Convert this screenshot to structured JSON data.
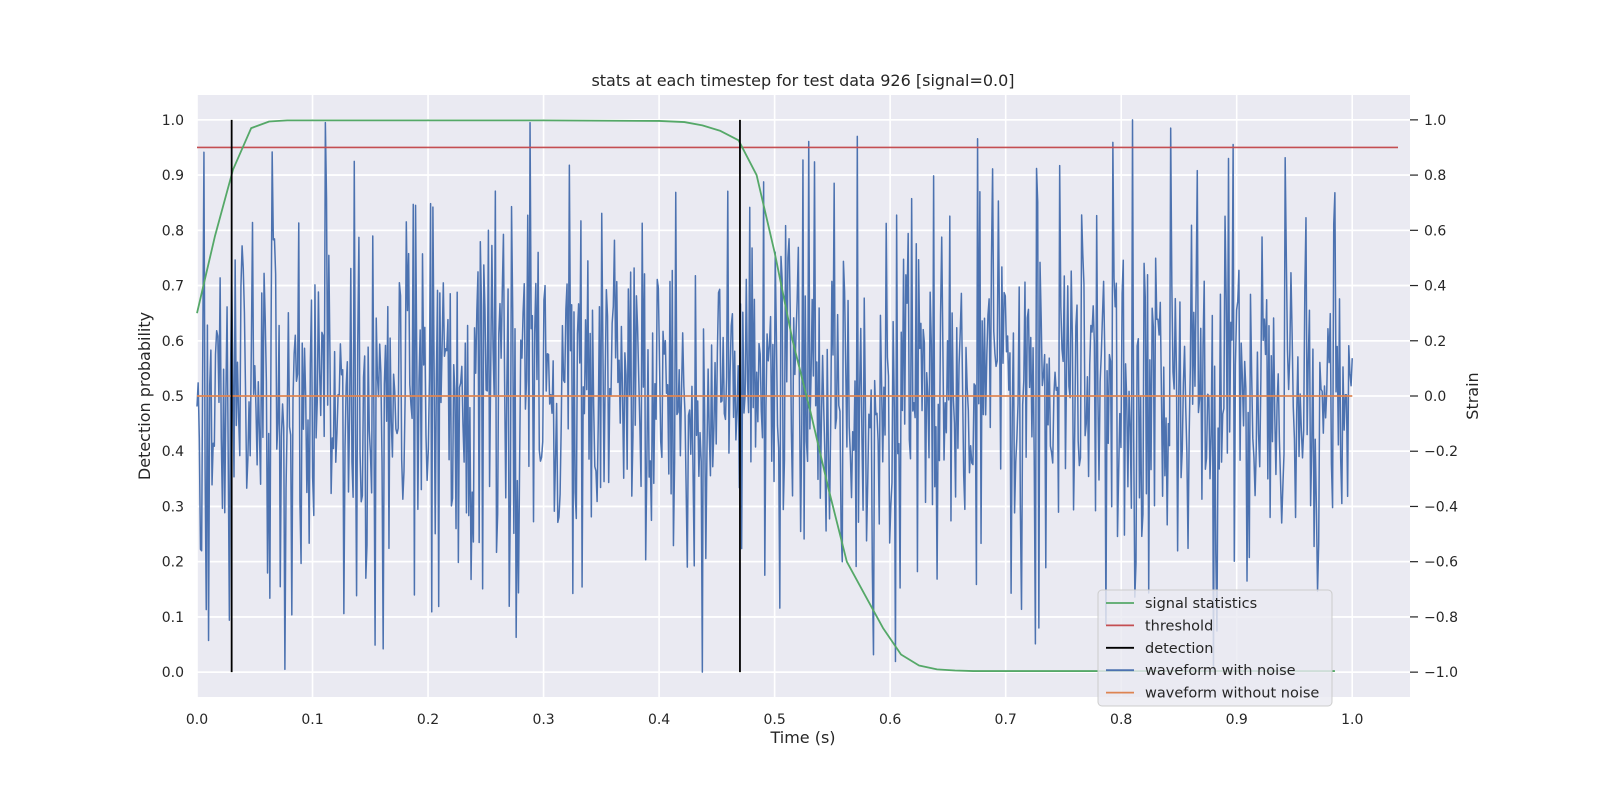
{
  "chart_data": {
    "type": "line",
    "title": "stats at each timestep for test data 926 [signal=0.0]",
    "xlabel": "Time (s)",
    "ylabel": "Detection probability",
    "ylabel_right": "Strain",
    "xlim": [
      0.0,
      1.05
    ],
    "ylim": [
      -0.045,
      1.045
    ],
    "ylim_right": [
      -1.09,
      1.09
    ],
    "xticks": [
      "0.0",
      "0.1",
      "0.2",
      "0.3",
      "0.4",
      "0.5",
      "0.6",
      "0.7",
      "0.8",
      "0.9",
      "1.0"
    ],
    "yticks": [
      "0.0",
      "0.1",
      "0.2",
      "0.3",
      "0.4",
      "0.5",
      "0.6",
      "0.7",
      "0.8",
      "0.9",
      "1.0"
    ],
    "yticks_right": [
      "−1.0",
      "−0.8",
      "−0.6",
      "−0.4",
      "−0.2",
      "0.0",
      "0.2",
      "0.4",
      "0.6",
      "0.8",
      "1.0"
    ],
    "grid": true,
    "legend_position": "lower-right",
    "series": [
      {
        "name": "signal statistics",
        "color": "#55a868",
        "axis": "left",
        "x": [
          0.0,
          0.0156,
          0.0312,
          0.0469,
          0.0625,
          0.0781,
          0.0938,
          0.1094,
          0.125,
          0.2,
          0.3,
          0.4,
          0.4219,
          0.4375,
          0.4531,
          0.4688,
          0.4844,
          0.5,
          0.5156,
          0.5312,
          0.5469,
          0.5625,
          0.5781,
          0.5938,
          0.6094,
          0.625,
          0.6406,
          0.6562,
          0.6719,
          0.7,
          0.8,
          0.9,
          0.985
        ],
        "y": [
          0.65,
          0.79,
          0.91,
          0.985,
          0.997,
          0.999,
          0.999,
          0.999,
          0.999,
          0.999,
          0.999,
          0.998,
          0.996,
          0.99,
          0.98,
          0.963,
          0.9,
          0.76,
          0.6,
          0.47,
          0.33,
          0.2,
          0.14,
          0.08,
          0.032,
          0.012,
          0.005,
          0.003,
          0.002,
          0.002,
          0.002,
          0.002,
          0.002
        ]
      },
      {
        "name": "threshold",
        "color": "#c44e52",
        "axis": "left",
        "x": [
          0.0,
          1.05
        ],
        "y": [
          0.95,
          0.95
        ]
      },
      {
        "name": "detection",
        "color": "#000000",
        "axis": "left",
        "x": [
          0.03,
          0.47
        ],
        "y_range": [
          0.0,
          1.0
        ]
      },
      {
        "name": "waveform with noise",
        "color": "#4c72b0",
        "axis": "right",
        "t_range": [
          0.0,
          1.0
        ],
        "n_points": 1000,
        "amplitude_sd": 0.33,
        "extremes": [
          {
            "x": 0.437,
            "y": -1.0
          },
          {
            "x": 0.572,
            "y": 0.94
          },
          {
            "x": 0.81,
            "y": 1.0
          },
          {
            "x": 0.843,
            "y": 0.97
          },
          {
            "x": 0.893,
            "y": 0.86
          },
          {
            "x": 0.88,
            "y": -1.0
          }
        ]
      },
      {
        "name": "waveform without noise",
        "color": "#dd8452",
        "axis": "right",
        "x": [
          0.0,
          1.0
        ],
        "y": [
          0.0,
          0.0
        ]
      }
    ]
  }
}
